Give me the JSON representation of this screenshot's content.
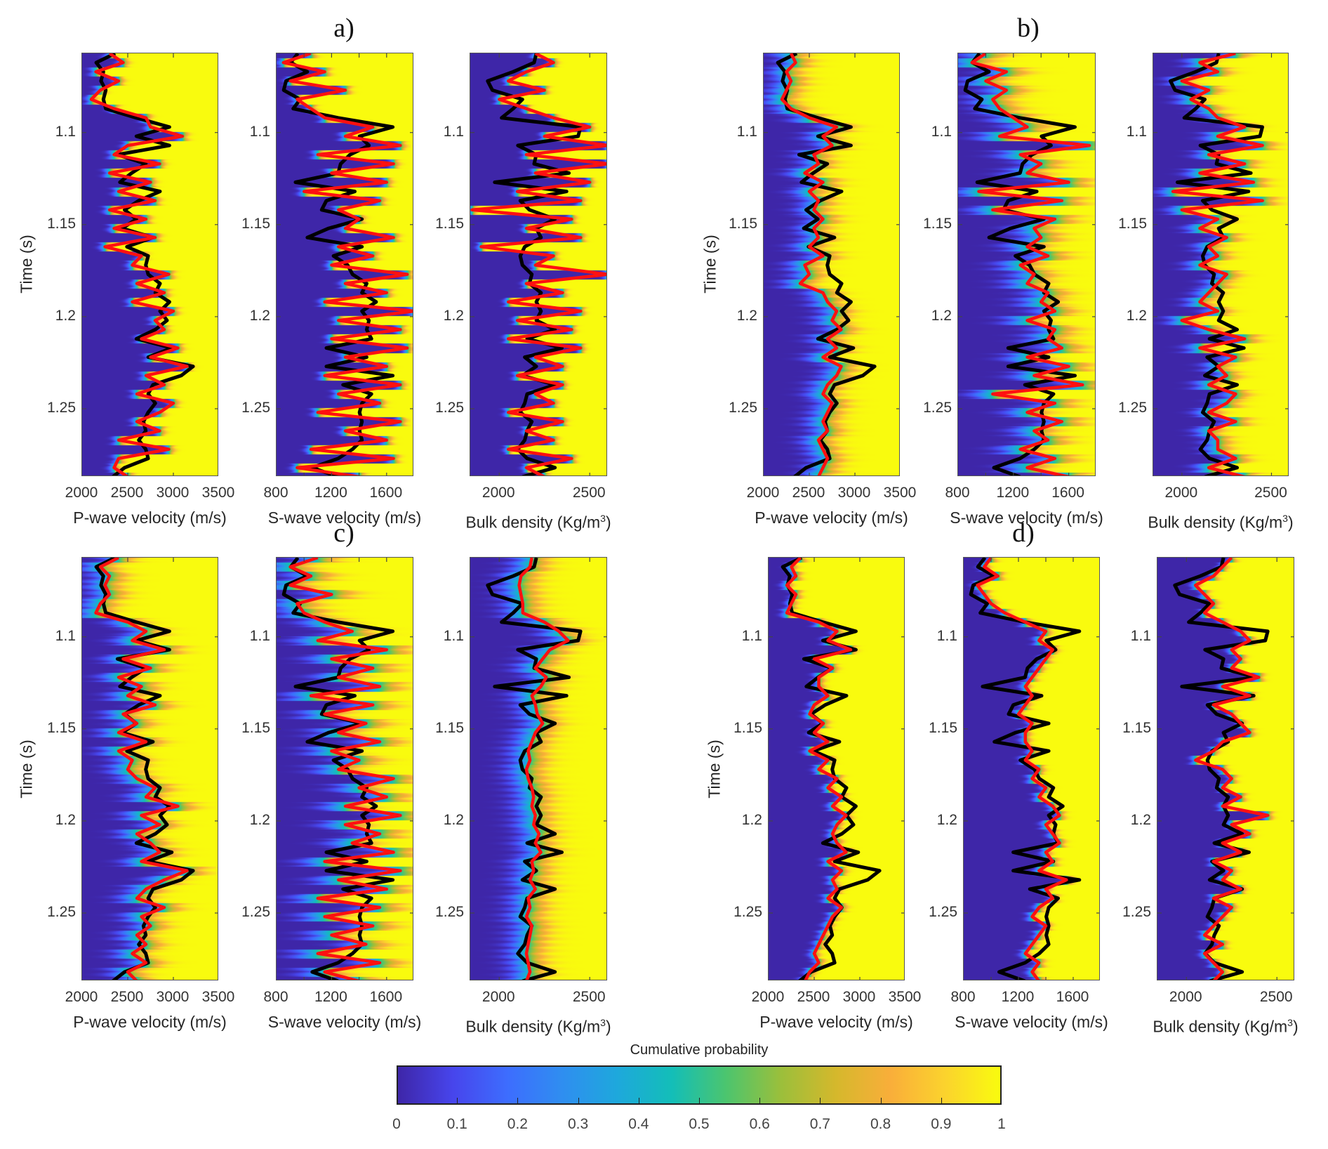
{
  "figure": {
    "ylabel": "Time (s)",
    "colorbar": {
      "title": "Cumulative probability",
      "ticks": [
        "0",
        "0.1",
        "0.2",
        "0.3",
        "0.4",
        "0.5",
        "0.6",
        "0.7",
        "0.8",
        "0.9",
        "1"
      ],
      "range": [
        0,
        1
      ],
      "colormap": [
        "#3e26a8",
        "#4745ec",
        "#3d6dfe",
        "#2f8ef0",
        "#1ea8dc",
        "#13beb8",
        "#4cc56e",
        "#9bbf3b",
        "#d5b82c",
        "#f9ae3a",
        "#fbd32d",
        "#f9fb0e"
      ],
      "colors": {
        "line_true": "#000000",
        "line_predicted": "#ff1010"
      }
    },
    "axes": {
      "pv": {
        "label": "P-wave velocity (m/s)",
        "ticks": [
          2000,
          2500,
          3000,
          3500
        ],
        "tick_labels": [
          "2000",
          "2500",
          "3000",
          "3500"
        ],
        "range": [
          2000,
          3500
        ]
      },
      "sv": {
        "label": "S-wave velocity (m/s)",
        "ticks": [
          800,
          1000,
          1200,
          1400,
          1600
        ],
        "tick_labels": [
          "800",
          "",
          "1200",
          "",
          "1600"
        ],
        "range": [
          800,
          1800
        ]
      },
      "bd": {
        "label_pre": "Bulk density (Kg/m",
        "label_sup": "3",
        "label_post": ")",
        "ticks": [
          2000,
          2500
        ],
        "tick_labels": [
          "2000",
          "2500"
        ],
        "range": [
          1840,
          2600
        ]
      },
      "time": {
        "ticks": [
          1.1,
          1.15,
          1.2,
          1.25
        ],
        "tick_labels": [
          "1.1",
          "1.15",
          "1.2",
          "1.25"
        ],
        "range": [
          1.057,
          1.287
        ]
      }
    }
  },
  "chart_data": {
    "type": "heatmap",
    "title": "",
    "description": "Cumulative probability of inverted elastic properties vs time, with true log (black) and predicted (red)",
    "time": [
      1.057,
      1.062,
      1.067,
      1.072,
      1.077,
      1.082,
      1.087,
      1.092,
      1.097,
      1.102,
      1.107,
      1.112,
      1.117,
      1.122,
      1.127,
      1.132,
      1.137,
      1.142,
      1.147,
      1.152,
      1.157,
      1.162,
      1.167,
      1.172,
      1.177,
      1.182,
      1.187,
      1.192,
      1.197,
      1.202,
      1.207,
      1.212,
      1.217,
      1.222,
      1.227,
      1.232,
      1.237,
      1.242,
      1.247,
      1.252,
      1.257,
      1.262,
      1.267,
      1.272,
      1.277,
      1.282,
      1.287
    ],
    "true_log": {
      "pv": [
        2362,
        2155,
        2233,
        2207,
        2259,
        2233,
        2259,
        2595,
        2957,
        2595,
        2957,
        2388,
        2698,
        2543,
        2414,
        2854,
        2621,
        2465,
        2595,
        2439,
        2776,
        2491,
        2724,
        2698,
        2724,
        2854,
        2802,
        2957,
        2854,
        2931,
        2802,
        2595,
        2983,
        2724,
        3216,
        3086,
        2776,
        2724,
        2802,
        2724,
        2672,
        2698,
        2621,
        2698,
        2724,
        2465,
        2336
      ],
      "sv": [
        955,
        903,
        1024,
        869,
        852,
        972,
        921,
        1248,
        1645,
        1403,
        1472,
        1334,
        1266,
        1248,
        938,
        1369,
        1162,
        1128,
        1421,
        1179,
        1024,
        1421,
        1214,
        1317,
        1352,
        1455,
        1421,
        1524,
        1421,
        1472,
        1455,
        1490,
        1162,
        1455,
        1162,
        1645,
        1283,
        1490,
        1421,
        1403,
        1421,
        1403,
        1421,
        1352,
        1248,
        1059,
        1248
      ],
      "bd": [
        2205,
        2193,
        2077,
        1936,
        1962,
        2128,
        2077,
        2013,
        2449,
        2436,
        2103,
        2205,
        2193,
        2385,
        1975,
        2372,
        2116,
        2167,
        2308,
        2205,
        2231,
        2141,
        2116,
        2128,
        2180,
        2167,
        2231,
        2205,
        2231,
        2205,
        2308,
        2154,
        2346,
        2141,
        2205,
        2128,
        2308,
        2154,
        2141,
        2116,
        2180,
        2154,
        2141,
        2103,
        2154,
        2308,
        2128
      ]
    },
    "panels": [
      {
        "id": "a",
        "label": "a)",
        "uncertainty": {
          "pv": 45,
          "sv": 30,
          "bd": 18
        },
        "predicted": {
          "pv": [
            2300,
            2450,
            2150,
            2400,
            2200,
            2100,
            2350,
            2700,
            2750,
            3100,
            2500,
            2350,
            2850,
            2300,
            2750,
            2400,
            2800,
            2300,
            2700,
            2350,
            2800,
            2250,
            2650,
            2550,
            2950,
            2600,
            2900,
            2550,
            3000,
            2800,
            2900,
            2650,
            3050,
            2750,
            3150,
            2700,
            2900,
            2600,
            3000,
            2850,
            2600,
            2850,
            2400,
            2950,
            2400,
            2350,
            2500
          ],
          "sv": [
            1050,
            850,
            1150,
            900,
            1300,
            950,
            1050,
            1150,
            1500,
            1300,
            1700,
            1100,
            1650,
            1200,
            1600,
            1000,
            1550,
            1250,
            1400,
            1300,
            1650,
            1250,
            1500,
            1200,
            1750,
            1300,
            1600,
            1150,
            1800,
            1250,
            1700,
            1200,
            1750,
            1300,
            1600,
            1150,
            1700,
            1250,
            1550,
            1100,
            1700,
            1300,
            1600,
            1050,
            1650,
            950,
            1400
          ],
          "bd": [
            2200,
            2300,
            2150,
            2050,
            2250,
            2000,
            2150,
            2300,
            2500,
            2250,
            2600,
            2150,
            2600,
            2200,
            2500,
            2100,
            2450,
            1850,
            2400,
            2150,
            2450,
            1900,
            2300,
            2200,
            2600,
            2150,
            2350,
            2050,
            2450,
            2100,
            2400,
            2050,
            2450,
            2200,
            2350,
            2100,
            2350,
            2200,
            2300,
            2050,
            2350,
            2150,
            2300,
            2050,
            2400,
            2150,
            2250
          ]
        }
      },
      {
        "id": "b",
        "label": "b)",
        "uncertainty": {
          "pv": 130,
          "sv": 110,
          "bd": 55
        },
        "predicted": {
          "pv": [
            2300,
            2350,
            2250,
            2300,
            2250,
            2200,
            2300,
            2500,
            2800,
            2650,
            2750,
            2550,
            2600,
            2450,
            2650,
            2500,
            2600,
            2550,
            2650,
            2550,
            2600,
            2500,
            2650,
            2450,
            2500,
            2400,
            2650,
            2700,
            2800,
            2750,
            2850,
            2700,
            2800,
            2650,
            2850,
            2800,
            2700,
            2650,
            2750,
            2700,
            2650,
            2700,
            2600,
            2650,
            2700,
            2650,
            2600
          ],
          "sv": [
            1000,
            900,
            1150,
            1000,
            1150,
            1050,
            1100,
            1200,
            1300,
            1100,
            1750,
            1250,
            1400,
            1300,
            1600,
            950,
            1550,
            1050,
            1500,
            1350,
            1400,
            1300,
            1450,
            1250,
            1350,
            1300,
            1450,
            1400,
            1500,
            1300,
            1500,
            1450,
            1550,
            1300,
            1600,
            1350,
            1700,
            1050,
            1500,
            1300,
            1550,
            1350,
            1450,
            1250,
            1500,
            1300,
            1600
          ],
          "bd": [
            2300,
            2100,
            2200,
            2000,
            2150,
            2050,
            2150,
            2200,
            2350,
            2200,
            2450,
            2150,
            2350,
            2100,
            2400,
            1950,
            2450,
            2000,
            2200,
            2100,
            2250,
            2150,
            2200,
            2100,
            2250,
            2200,
            2150,
            2100,
            2200,
            2000,
            2150,
            2350,
            2100,
            2300,
            2200,
            2250,
            2150,
            2300,
            2250,
            2150,
            2300,
            2150,
            2200,
            2200,
            2300,
            2150,
            2350
          ]
        }
      },
      {
        "id": "c",
        "label": "c)",
        "uncertainty": {
          "pv": 140,
          "sv": 120,
          "bd": 75
        },
        "predicted": {
          "pv": [
            2400,
            2200,
            2300,
            2250,
            2300,
            2200,
            2150,
            2500,
            2700,
            2550,
            2900,
            2450,
            2750,
            2400,
            2650,
            2500,
            2800,
            2450,
            2600,
            2400,
            2700,
            2400,
            2550,
            2500,
            2600,
            2800,
            2700,
            3050,
            2650,
            2850,
            2600,
            2750,
            2850,
            2650,
            3150,
            2900,
            2700,
            2600,
            2900,
            2650,
            2750,
            2600,
            2700,
            2550,
            2700,
            2500,
            2600
          ],
          "sv": [
            1100,
            900,
            1050,
            900,
            1200,
            950,
            1000,
            1150,
            1350,
            1100,
            1600,
            1200,
            1500,
            1250,
            1550,
            1050,
            1500,
            1150,
            1450,
            1250,
            1550,
            1200,
            1400,
            1250,
            1650,
            1400,
            1600,
            1300,
            1700,
            1300,
            1550,
            1350,
            1650,
            1150,
            1700,
            1250,
            1600,
            1100,
            1550,
            1150,
            1500,
            1200,
            1450,
            1100,
            1550,
            1150,
            1400
          ],
          "bd": [
            2180,
            2170,
            2120,
            2110,
            2120,
            2130,
            2130,
            2250,
            2330,
            2380,
            2280,
            2240,
            2200,
            2260,
            2230,
            2180,
            2200,
            2210,
            2240,
            2200,
            2180,
            2160,
            2170,
            2150,
            2160,
            2180,
            2190,
            2180,
            2200,
            2190,
            2220,
            2200,
            2230,
            2180,
            2190,
            2170,
            2200,
            2160,
            2170,
            2150,
            2180,
            2170,
            2160,
            2150,
            2160,
            2170,
            2150
          ]
        }
      },
      {
        "id": "d",
        "label": "d)",
        "uncertainty": {
          "pv": 45,
          "sv": 30,
          "bd": 20
        },
        "predicted": {
          "pv": [
            2350,
            2250,
            2300,
            2200,
            2300,
            2250,
            2200,
            2550,
            2750,
            2650,
            2900,
            2500,
            2700,
            2550,
            2550,
            2650,
            2500,
            2450,
            2600,
            2500,
            2650,
            2450,
            2650,
            2550,
            2750,
            2650,
            2800,
            2700,
            2850,
            2750,
            2700,
            2750,
            2850,
            2650,
            2800,
            2700,
            2750,
            2650,
            2800,
            2700,
            2650,
            2600,
            2550,
            2500,
            2550,
            2450,
            2400
          ],
          "sv": [
            1000,
            950,
            1050,
            900,
            950,
            1000,
            1100,
            1250,
            1400,
            1350,
            1450,
            1400,
            1350,
            1300,
            1250,
            1300,
            1250,
            1200,
            1300,
            1250,
            1250,
            1300,
            1250,
            1350,
            1300,
            1400,
            1350,
            1450,
            1500,
            1400,
            1450,
            1500,
            1400,
            1450,
            1350,
            1550,
            1400,
            1450,
            1350,
            1300,
            1400,
            1350,
            1300,
            1250,
            1350,
            1300,
            1350
          ],
          "bd": [
            2250,
            2200,
            2150,
            2050,
            2100,
            2150,
            2100,
            2200,
            2300,
            2350,
            2250,
            2300,
            2250,
            2400,
            2200,
            2350,
            2150,
            2250,
            2300,
            2350,
            2200,
            2150,
            2050,
            2200,
            2250,
            2200,
            2300,
            2200,
            2450,
            2250,
            2350,
            2200,
            2300,
            2150,
            2250,
            2200,
            2300,
            2150,
            2250,
            2200,
            2150,
            2100,
            2200,
            2100,
            2150,
            2200,
            2150
          ]
        }
      }
    ]
  }
}
